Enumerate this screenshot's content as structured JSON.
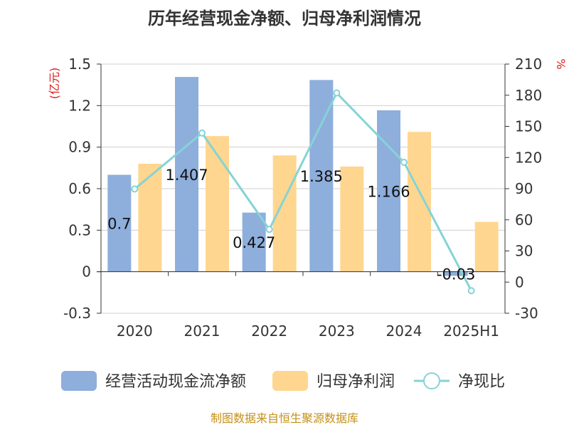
{
  "chart_data": {
    "type": "bar",
    "title": "历年经营现金净额、归母净利润情况",
    "categories": [
      "2020",
      "2021",
      "2022",
      "2023",
      "2024",
      "2025H1"
    ],
    "left_axis": {
      "unit_label": "(亿元)",
      "ticks": [
        "1.5",
        "1.2",
        "0.9",
        "0.6",
        "0.3",
        "0",
        "-0.3"
      ],
      "ylim": [
        -0.3,
        1.5
      ]
    },
    "right_axis": {
      "unit_label": "%",
      "ticks": [
        "210",
        "180",
        "150",
        "120",
        "90",
        "60",
        "30",
        "0",
        "-30"
      ],
      "ylim": [
        -30,
        210
      ]
    },
    "series": [
      {
        "name": "经营活动现金流净额",
        "type": "bar",
        "axis": "left",
        "color": "#8eaedc",
        "values": [
          0.7,
          1.407,
          0.427,
          1.385,
          1.166,
          -0.03
        ],
        "data_labels": [
          "0.7",
          "1.407",
          "0.427",
          "1.385",
          "1.166",
          "-0.03"
        ]
      },
      {
        "name": "归母净利润",
        "type": "bar",
        "axis": "left",
        "color": "#ffd68f",
        "values": [
          0.78,
          0.98,
          0.84,
          0.76,
          1.01,
          0.36
        ]
      },
      {
        "name": "净现比",
        "type": "line",
        "axis": "right",
        "color": "#86d3d6",
        "values": [
          89.7,
          143.6,
          50.8,
          182.2,
          115.4,
          -8.3
        ]
      }
    ],
    "grid": true,
    "legend_position": "bottom"
  },
  "footer": {
    "source": "制图数据来自恒生聚源数据库"
  }
}
